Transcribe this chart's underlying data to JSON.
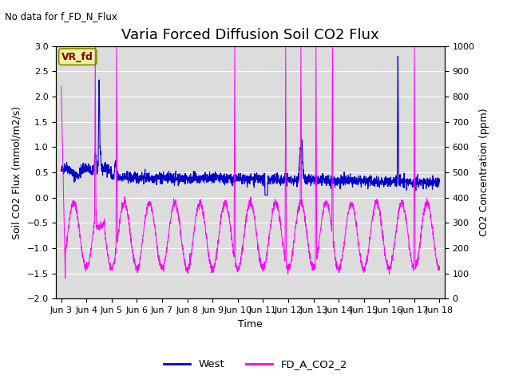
{
  "title": "Varia Forced Diffusion Soil CO2 Flux",
  "top_left_text": "No data for f_FD_N_Flux",
  "annotation_text": "VR_fd",
  "xlabel": "Time",
  "ylabel_left": "Soil CO2 Flux (mmol/m2/s)",
  "ylabel_right": "CO2 Concentration (ppm)",
  "ylim_left": [
    -2.0,
    3.0
  ],
  "ylim_right": [
    0,
    1000
  ],
  "x_tick_labels": [
    "Jun 3",
    "Jun 4",
    "Jun 5",
    "Jun 6",
    "Jun 7",
    "Jun 8",
    "Jun 9",
    "Jun 10",
    "Jun 11",
    "Jun 12",
    "Jun 13",
    "Jun 14",
    "Jun 15",
    "Jun 16",
    "Jun 17",
    "Jun 18"
  ],
  "background_color": "#dcdcdc",
  "title_fontsize": 13,
  "label_fontsize": 9,
  "tick_fontsize": 8,
  "legend_labels": [
    "West",
    "FD_A_CO2_2"
  ],
  "legend_colors": [
    "#0000cc",
    "#ff00ff"
  ],
  "blue_line_color": "#0000cc",
  "magenta_line_color": "#ff00ff",
  "grid_color": "#ffffff",
  "n_days": 15,
  "n_points_per_day": 144
}
